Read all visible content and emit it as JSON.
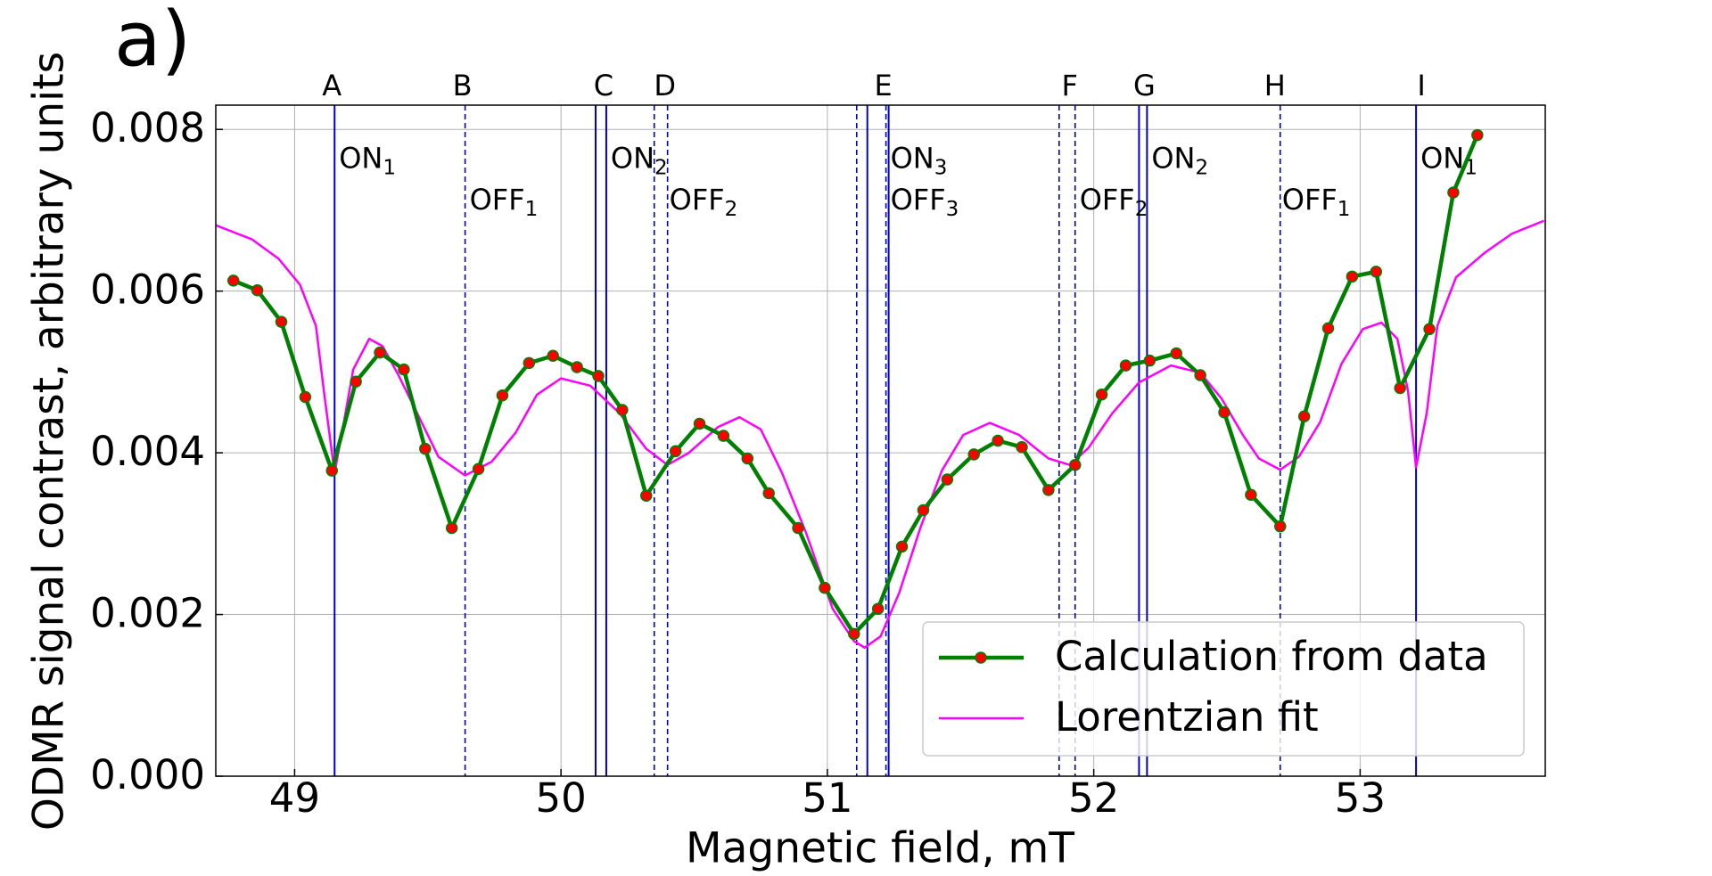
{
  "chart_data": {
    "type": "line",
    "panel_label": "a)",
    "x_label": "Magnetic field, mT",
    "y_label": "ODMR signal contrast, arbitrary units",
    "xlim": [
      48.704,
      53.695
    ],
    "ylim": [
      0,
      0.0083
    ],
    "xticks": [
      49,
      50,
      51,
      52,
      53
    ],
    "yticks": [
      {
        "value": 0,
        "label": "0.000"
      },
      {
        "value": 0.002,
        "label": "0.002"
      },
      {
        "value": 0.004,
        "label": "0.004"
      },
      {
        "value": 0.006,
        "label": "0.006"
      },
      {
        "value": 0.008,
        "label": "0.008"
      }
    ],
    "grid": true,
    "legend": "lower right",
    "series": [
      {
        "name": "Calculation from data",
        "color": "#008000",
        "marker_color": "#ff0000",
        "x": [
          48.77,
          48.86,
          48.95,
          49.04,
          49.14,
          49.23,
          49.32,
          49.41,
          49.49,
          49.59,
          49.69,
          49.78,
          49.88,
          49.97,
          50.06,
          50.14,
          50.23,
          50.32,
          50.43,
          50.52,
          50.61,
          50.7,
          50.78,
          50.89,
          50.99,
          51.1,
          51.19,
          51.28,
          51.36,
          51.45,
          51.55,
          51.64,
          51.73,
          51.83,
          51.93,
          52.03,
          52.12,
          52.21,
          52.31,
          52.4,
          52.49,
          52.59,
          52.7,
          52.79,
          52.88,
          52.97,
          53.06,
          53.15,
          53.26,
          53.35,
          53.44
        ],
        "values": [
          0.00613,
          0.00601,
          0.00562,
          0.00469,
          0.00378,
          0.00488,
          0.00524,
          0.00503,
          0.00405,
          0.00307,
          0.0038,
          0.00471,
          0.00511,
          0.0052,
          0.00506,
          0.00495,
          0.00453,
          0.00347,
          0.00402,
          0.00436,
          0.00421,
          0.00393,
          0.0035,
          0.00307,
          0.00233,
          0.00176,
          0.00207,
          0.00284,
          0.00329,
          0.00367,
          0.00398,
          0.00415,
          0.00407,
          0.00354,
          0.00385,
          0.00472,
          0.00508,
          0.00514,
          0.00523,
          0.00496,
          0.0045,
          0.00348,
          0.00309,
          0.00445,
          0.00554,
          0.00618,
          0.00624,
          0.0048,
          0.00553,
          0.00722,
          0.00793
        ]
      },
      {
        "name": "Lorentzian fit",
        "color": "#ff00ff",
        "x": [
          48.7,
          48.84,
          48.94,
          49.02,
          49.08,
          49.11,
          49.15,
          49.18,
          49.22,
          49.28,
          49.33,
          49.39,
          49.46,
          49.54,
          49.64,
          49.74,
          49.83,
          49.91,
          50.0,
          50.11,
          50.22,
          50.32,
          50.4,
          50.48,
          50.59,
          50.67,
          50.75,
          50.83,
          50.92,
          51.02,
          51.1,
          51.14,
          51.2,
          51.27,
          51.35,
          51.43,
          51.51,
          51.61,
          51.72,
          51.83,
          51.91,
          51.98,
          52.07,
          52.17,
          52.29,
          52.4,
          52.48,
          52.56,
          52.62,
          52.7,
          52.77,
          52.85,
          52.93,
          53.01,
          53.08,
          53.14,
          53.18,
          53.21,
          53.25,
          53.29,
          53.36,
          53.47,
          53.57,
          53.69
        ],
        "values": [
          0.00682,
          0.00664,
          0.0064,
          0.00608,
          0.00557,
          0.00476,
          0.00375,
          0.00429,
          0.00503,
          0.00541,
          0.00532,
          0.00496,
          0.00449,
          0.00395,
          0.00372,
          0.00389,
          0.00425,
          0.00472,
          0.00492,
          0.00483,
          0.00449,
          0.00405,
          0.00385,
          0.004,
          0.00432,
          0.00444,
          0.00429,
          0.00375,
          0.00301,
          0.00207,
          0.00167,
          0.00159,
          0.00173,
          0.00227,
          0.00308,
          0.00378,
          0.00422,
          0.00437,
          0.00422,
          0.00393,
          0.00385,
          0.00406,
          0.00449,
          0.00487,
          0.00508,
          0.00499,
          0.00467,
          0.00422,
          0.00393,
          0.00379,
          0.00395,
          0.00438,
          0.0051,
          0.00553,
          0.00561,
          0.00541,
          0.00476,
          0.00382,
          0.00449,
          0.00557,
          0.00617,
          0.00648,
          0.00671,
          0.00687
        ]
      }
    ],
    "vlines_color": "#0000cc",
    "vlines": [
      {
        "x": 49.15,
        "style": "solid"
      },
      {
        "x": 49.64,
        "style": "dashed"
      },
      {
        "x": 50.13,
        "style": "solid"
      },
      {
        "x": 50.17,
        "style": "solid"
      },
      {
        "x": 50.35,
        "style": "dashed"
      },
      {
        "x": 50.4,
        "style": "dashed"
      },
      {
        "x": 51.11,
        "style": "dashed"
      },
      {
        "x": 51.15,
        "style": "solid"
      },
      {
        "x": 51.22,
        "style": "dashed"
      },
      {
        "x": 51.23,
        "style": "solid"
      },
      {
        "x": 51.87,
        "style": "dashed"
      },
      {
        "x": 51.93,
        "style": "dashed"
      },
      {
        "x": 52.17,
        "style": "solid"
      },
      {
        "x": 52.2,
        "style": "solid"
      },
      {
        "x": 52.7,
        "style": "dashed"
      },
      {
        "x": 53.21,
        "style": "solid"
      }
    ],
    "letters": [
      {
        "text": "A",
        "x": 49.14
      },
      {
        "text": "B",
        "x": 49.63
      },
      {
        "text": "C",
        "x": 50.16
      },
      {
        "text": "D",
        "x": 50.39
      },
      {
        "text": "E",
        "x": 51.21
      },
      {
        "text": "F",
        "x": 51.91
      },
      {
        "text": "G",
        "x": 52.19
      },
      {
        "text": "H",
        "x": 52.68
      },
      {
        "text": "I",
        "x": 53.23
      }
    ],
    "annotations": [
      {
        "text": "ON",
        "sub": "1",
        "x": 49.16,
        "y": 0.00762
      },
      {
        "text": "OFF",
        "sub": "1",
        "x": 49.65,
        "y": 0.00711
      },
      {
        "text": "ON",
        "sub": "2",
        "x": 50.18,
        "y": 0.00762
      },
      {
        "text": "OFF",
        "sub": "2",
        "x": 50.4,
        "y": 0.00711
      },
      {
        "text": "ON",
        "sub": "3",
        "x": 51.23,
        "y": 0.00762
      },
      {
        "text": "OFF",
        "sub": "3",
        "x": 51.23,
        "y": 0.00711
      },
      {
        "text": "OFF",
        "sub": "2",
        "x": 51.94,
        "y": 0.00711
      },
      {
        "text": "ON",
        "sub": "2",
        "x": 52.21,
        "y": 0.00762
      },
      {
        "text": "OFF",
        "sub": "1",
        "x": 52.7,
        "y": 0.00711
      },
      {
        "text": "ON",
        "sub": "1",
        "x": 53.22,
        "y": 0.00762
      }
    ]
  }
}
